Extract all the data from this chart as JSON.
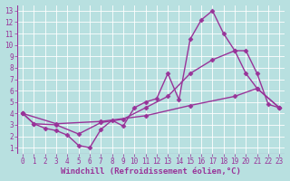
{
  "background_color": "#b8e0e0",
  "grid_color": "#ffffff",
  "line_color": "#993399",
  "xlabel": "Windchill (Refroidissement éolien,°C)",
  "xlabel_color": "#993399",
  "xlim": [
    -0.5,
    23.5
  ],
  "ylim": [
    0.5,
    13.5
  ],
  "xticks": [
    0,
    1,
    2,
    3,
    4,
    5,
    6,
    7,
    8,
    9,
    10,
    11,
    12,
    13,
    14,
    15,
    16,
    17,
    18,
    19,
    20,
    21,
    22,
    23
  ],
  "yticks": [
    1,
    2,
    3,
    4,
    5,
    6,
    7,
    8,
    9,
    10,
    11,
    12,
    13
  ],
  "line1_x": [
    0,
    1,
    2,
    3,
    4,
    5,
    6,
    7,
    8,
    9,
    10,
    11,
    12,
    13,
    14,
    15,
    16,
    17,
    18,
    19,
    20,
    21,
    22,
    23
  ],
  "line1_y": [
    4.0,
    3.1,
    2.7,
    2.5,
    2.1,
    1.2,
    1.0,
    2.6,
    3.4,
    2.9,
    4.5,
    5.0,
    5.3,
    7.5,
    5.2,
    10.5,
    12.2,
    13.0,
    11.0,
    9.5,
    9.5,
    7.5,
    4.8,
    4.5
  ],
  "line2_x": [
    0,
    1,
    3,
    5,
    7,
    9,
    11,
    13,
    15,
    17,
    19,
    20,
    21,
    23
  ],
  "line2_y": [
    4.0,
    3.1,
    3.0,
    2.2,
    3.2,
    3.5,
    4.5,
    5.5,
    7.5,
    8.7,
    9.5,
    7.5,
    6.2,
    4.5
  ],
  "line3_x": [
    0,
    3,
    7,
    11,
    15,
    19,
    21,
    23
  ],
  "line3_y": [
    4.0,
    3.1,
    3.3,
    3.8,
    4.7,
    5.5,
    6.2,
    4.5
  ],
  "marker": "D",
  "markersize": 2.5,
  "linewidth": 1.0,
  "tick_fontsize": 5.5,
  "label_fontsize": 6.5
}
